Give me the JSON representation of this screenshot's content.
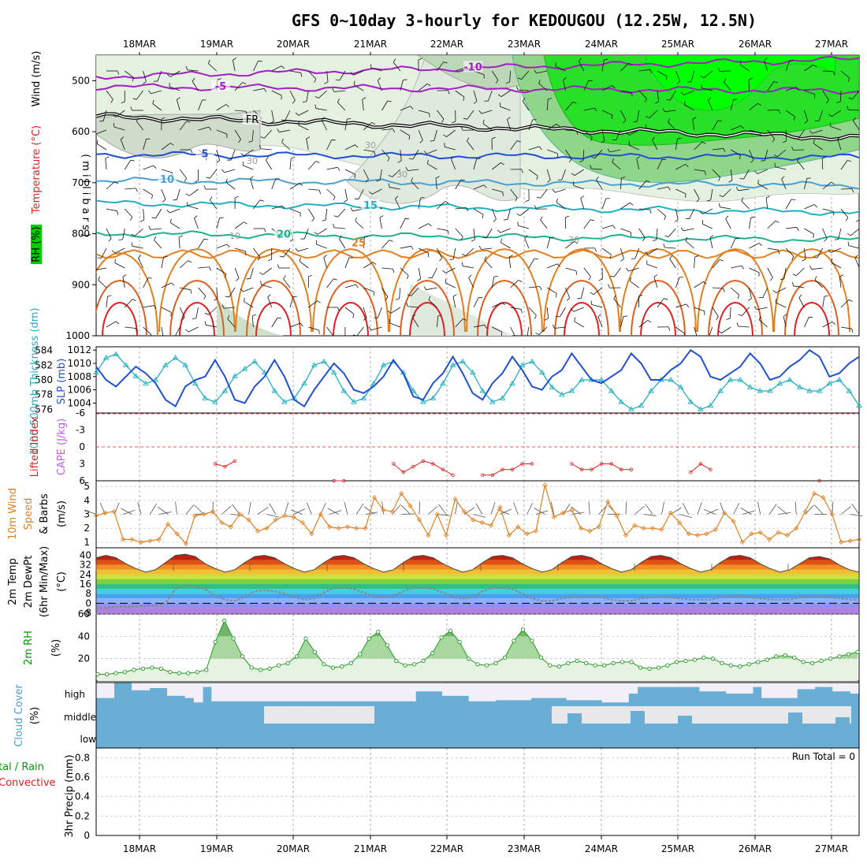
{
  "title": "GFS 0~10day 3-hourly for KEDOUGOU (12.25W, 12.5N)",
  "dates": [
    "18MAR",
    "19MAR",
    "20MAR",
    "21MAR",
    "22MAR",
    "23MAR",
    "24MAR",
    "25MAR",
    "26MAR",
    "27MAR"
  ],
  "colors": {
    "green": "#009900",
    "red": "#e02020",
    "purple": "#a020c0",
    "blue": "#2050d0",
    "cyan": "#20b0c0",
    "orange": "#e08020",
    "lblue": "#4aa0d0",
    "gray": "#666666"
  },
  "chart_data": [
    {
      "type": "contour",
      "panel": "upper-air",
      "ylabel": "(millibars)",
      "ylim": [
        1000,
        450
      ],
      "yticks": [
        500,
        600,
        700,
        800,
        900,
        1000
      ],
      "legend": [
        "Wind (m/s)",
        "Temperature (°C)",
        "RH (%)"
      ],
      "temperature_contours": [
        {
          "value": -10,
          "label": "-10",
          "p_start": 492,
          "p_end": 458
        },
        {
          "value": -5,
          "label": "-5",
          "p_start": 512,
          "p_end": 520
        },
        {
          "value": 0,
          "label": "FR",
          "p_start": 570,
          "p_end": 612
        },
        {
          "value": 5,
          "label": "5",
          "p_start": 645,
          "p_end": 650
        },
        {
          "value": 10,
          "label": "10",
          "p_start": 695,
          "p_end": 705
        },
        {
          "value": 15,
          "label": "15",
          "p_start": 740,
          "p_end": 758
        },
        {
          "value": 20,
          "label": "20",
          "p_start": 800,
          "p_end": 812
        },
        {
          "value": 25,
          "label": "25"
        }
      ],
      "rh_labels": [
        "30",
        "30",
        "30",
        "10",
        "30"
      ]
    },
    {
      "type": "line",
      "panel": "pressure-thickness",
      "y1label": "SLP (mb)",
      "y2label": "1000-500mb Thickness (dm)",
      "slp_ticks": [
        1004,
        1006,
        1008,
        1010,
        1012
      ],
      "thick_ticks": [
        576,
        578,
        580,
        582,
        584
      ],
      "slp_range": [
        1002.5,
        1012.5
      ],
      "thick_range": [
        575.5,
        584.5
      ],
      "series": [
        {
          "name": "SLP",
          "values": [
            1009.5,
            1007.5,
            1006.5,
            1008,
            1009.5,
            1008.5,
            1007,
            1004.5,
            1003.5,
            1006.5,
            1007.5,
            1008,
            1010.5,
            1008,
            1004.5,
            1004,
            1006.5,
            1008,
            1010.5,
            1008,
            1004.5,
            1003.5,
            1006,
            1008,
            1010,
            1008.5,
            1006,
            1005.5,
            1006.5,
            1008,
            1010.5,
            1008.5,
            1005,
            1004.5,
            1007,
            1008.5,
            1011,
            1008.5,
            1005.5,
            1004.5,
            1007,
            1008.5,
            1011,
            1009,
            1006.5,
            1006,
            1008,
            1009,
            1011.5,
            1009.5,
            1007.5,
            1007,
            1008,
            1009,
            1011.5,
            1010,
            1007.5,
            1007.5,
            1009,
            1010,
            1012,
            1011,
            1008,
            1007.5,
            1008.5,
            1009.5,
            1011.5,
            1010,
            1007.5,
            1008,
            1009.5,
            1010.5,
            1012,
            1011,
            1008,
            1008.5,
            1010,
            1011
          ]
        },
        {
          "name": "Thickness",
          "values": [
            581,
            583,
            583.5,
            582,
            580.5,
            579.5,
            580,
            582,
            583,
            582,
            579.5,
            577.5,
            577,
            578.5,
            580.5,
            581.5,
            582.5,
            581,
            578.5,
            577,
            577.5,
            579.5,
            582,
            582.5,
            581,
            578.5,
            577,
            577.5,
            579.5,
            582,
            582.5,
            581,
            578.5,
            577,
            577.5,
            579.5,
            582,
            582.5,
            581,
            578.5,
            577,
            577.5,
            579.5,
            582,
            582.5,
            581,
            579,
            578,
            578.5,
            580,
            580,
            580,
            578.5,
            577,
            576,
            576.5,
            578.5,
            580,
            580,
            579,
            577,
            576,
            576.5,
            578.5,
            580,
            580,
            579,
            578.5,
            578.5,
            579.5,
            580,
            579,
            578.5,
            578.5,
            579.5,
            580,
            578.5,
            576.5
          ]
        }
      ]
    },
    {
      "type": "line",
      "panel": "stability",
      "y1label": "CAPE (J/kg)",
      "y2label": "Lifted Index",
      "ticks": [
        6,
        3,
        0,
        -3,
        -6
      ],
      "range": [
        6,
        -6
      ],
      "series": [
        {
          "name": "Lifted Index",
          "values": [
            7,
            7,
            7,
            7,
            7,
            7,
            7,
            7,
            7,
            7,
            7,
            7,
            3,
            3.5,
            2.5,
            7,
            7,
            7,
            7,
            7,
            7,
            7,
            7,
            7,
            6,
            6,
            7,
            7,
            7,
            7,
            3,
            4.5,
            3.5,
            2.5,
            3,
            4,
            5,
            7,
            7,
            5,
            5,
            4,
            4,
            3,
            3,
            7,
            7,
            7,
            3,
            4,
            4,
            3,
            3,
            4,
            4,
            7,
            7,
            7,
            7,
            7,
            4.5,
            3,
            4,
            7,
            7,
            7,
            7,
            7,
            7,
            7,
            7,
            7,
            7,
            6,
            7,
            7,
            7,
            7
          ]
        }
      ]
    },
    {
      "type": "line",
      "panel": "10m-wind",
      "ylabel": "10m Wind Speed & Barbs (m/s)",
      "ticks": [
        1,
        2,
        3,
        4,
        5
      ],
      "ylim": [
        0.6,
        5.4
      ],
      "series": [
        {
          "name": "Wind speed",
          "values": [
            2.9,
            3.1,
            3.2,
            1.2,
            1.2,
            1.0,
            1.1,
            1.2,
            2.3,
            1.6,
            0.9,
            2.9,
            3.0,
            3.2,
            2.4,
            2.1,
            3.0,
            2.6,
            1.8,
            2.0,
            2.6,
            2.9,
            2.8,
            2.4,
            1.6,
            3.0,
            2.1,
            2.0,
            2.1,
            2.0,
            2.0,
            4.2,
            3.3,
            3.2,
            4.5,
            3.6,
            2.6,
            1.5,
            3.0,
            1.5,
            4.1,
            3.2,
            2.6,
            2.4,
            2.2,
            3.5,
            1.5,
            2.1,
            1.6,
            1.8,
            5.1,
            2.8,
            3.1,
            3.3,
            2.0,
            1.8,
            2.1,
            3.9,
            2.9,
            1.5,
            2.2,
            2.0,
            2.0,
            1.9,
            3.1,
            2.4,
            1.6,
            1.5,
            1.6,
            1.9,
            3.1,
            2.5,
            1.0,
            1.6,
            1.7,
            1.2,
            1.7,
            1.5,
            2.0,
            3.2,
            4.5,
            4.2,
            3.0,
            1.0,
            1.1,
            1.2
          ]
        }
      ]
    },
    {
      "type": "area",
      "panel": "2m-temp",
      "ylabel": "2m Temp 2m DewPt (6hr Min/Max) (°C)",
      "ticks": [
        -8,
        0,
        8,
        16,
        24,
        32,
        40
      ],
      "ylim": [
        -9,
        45
      ],
      "series": [
        {
          "name": "2m Temp",
          "values": [
            38,
            40,
            38,
            33,
            29,
            26,
            28,
            34,
            40,
            41,
            39,
            33,
            29,
            26,
            28,
            34,
            39,
            40,
            38,
            33,
            29,
            26,
            28,
            34,
            39,
            40,
            38,
            33,
            29,
            26,
            28,
            34,
            39,
            40,
            38,
            33,
            29,
            26,
            28,
            34,
            39,
            40,
            38,
            33,
            29,
            26,
            28,
            34,
            39,
            40,
            38,
            33,
            29,
            26,
            28,
            34,
            39,
            40,
            38,
            33,
            29,
            26,
            28,
            34,
            39,
            40,
            38,
            33,
            29,
            26,
            28,
            33,
            38,
            39,
            37,
            32,
            28,
            26
          ]
        },
        {
          "name": "2m DewPt",
          "values": [
            -4,
            -4,
            -3,
            -3,
            -3,
            -2,
            -2,
            0,
            12,
            15,
            14,
            12,
            6,
            3,
            2,
            5,
            10,
            11,
            10,
            8,
            5,
            3,
            4,
            9,
            13,
            13,
            12,
            9,
            6,
            5,
            6,
            10,
            13,
            13,
            12,
            9,
            5,
            4,
            5,
            10,
            13,
            13,
            12,
            8,
            4,
            2,
            2,
            4,
            5,
            5,
            6,
            5,
            3,
            2,
            2,
            4,
            5,
            5,
            5,
            4,
            3,
            3,
            3,
            5,
            6,
            6,
            5,
            4,
            3,
            3,
            3,
            5,
            6,
            6,
            5,
            4,
            3,
            3
          ]
        }
      ]
    },
    {
      "type": "area",
      "panel": "2m-rh",
      "ylabel": "2m RH (%)",
      "ticks": [
        20,
        40,
        60
      ],
      "ylim": [
        0,
        60
      ],
      "series": [
        {
          "name": "2m RH",
          "values": [
            6,
            6,
            7,
            8,
            10,
            11,
            12,
            11,
            8,
            7,
            7,
            8,
            10,
            35,
            54,
            38,
            22,
            12,
            10,
            11,
            14,
            16,
            22,
            38,
            26,
            15,
            12,
            13,
            16,
            24,
            38,
            44,
            32,
            18,
            14,
            15,
            18,
            25,
            39,
            45,
            35,
            20,
            15,
            14,
            16,
            21,
            36,
            46,
            36,
            21,
            14,
            13,
            16,
            18,
            16,
            14,
            14,
            16,
            17,
            17,
            12,
            11,
            12,
            14,
            17,
            18,
            19,
            21,
            20,
            16,
            14,
            13,
            15,
            17,
            19,
            22,
            23,
            21,
            17,
            16,
            18,
            20,
            22,
            24,
            26
          ]
        }
      ]
    },
    {
      "type": "heatmap",
      "panel": "cloud-cover",
      "ylabel": "Cloud Cover (%)",
      "layers": [
        "high",
        "middle",
        "low"
      ],
      "high_clear": [
        70,
        70,
        0,
        0,
        35,
        35,
        25,
        25,
        60,
        60,
        70,
        90,
        20,
        85,
        85,
        85,
        85,
        85,
        85,
        85,
        85,
        85,
        85,
        85,
        85,
        85,
        85,
        85,
        85,
        85,
        85,
        85,
        85,
        85,
        85,
        85,
        40,
        40,
        40,
        60,
        60,
        60,
        85,
        85,
        85,
        80,
        80,
        80,
        80,
        70,
        70,
        70,
        70,
        80,
        80,
        80,
        80,
        90,
        90,
        90,
        50,
        20,
        20,
        20,
        20,
        20,
        20,
        20,
        40,
        40,
        40,
        50,
        50,
        50,
        20,
        70,
        70,
        70,
        70,
        30,
        30,
        20,
        20,
        40,
        40,
        50
      ]
    },
    {
      "type": "bar",
      "panel": "precip",
      "ylabel": "3hr Precip (mm)",
      "legend": [
        "Total / Rain",
        "Convective"
      ],
      "ticks": [
        "0",
        "0.2",
        "0.4",
        "0.6",
        "0.8"
      ],
      "ylim": [
        0,
        0.9
      ],
      "values": [],
      "run_total": "Run Total = 0"
    }
  ],
  "labels": {
    "millibars": "(millibars)",
    "rh": "RH (%)",
    "temperature": "Temperature (°C)",
    "wind": "Wind (m/s)",
    "slp": "SLP (mb)",
    "thickness": "1000-500mb Thickness (dm)",
    "cape": "CAPE (J/kg)",
    "li": "Lifted Index",
    "wind10a": "10m Wind",
    "wind10b": "Speed",
    "wind10c": "& Barbs",
    "wind10unit": "(m/s)",
    "t2a": "2m Temp",
    "t2b": "2m DewPt",
    "t2c": "(6hr Min/Max)",
    "t2unit": "(°C)",
    "rh2": "2m RH",
    "rh2unit": "(%)",
    "cloud": "Cloud Cover",
    "cloudunit": "(%)",
    "precipA": "tal / Rain",
    "precipB": "Convective",
    "precipC": "3hr Precip (mm)",
    "high": "high",
    "middle": "middle",
    "low": "low"
  }
}
